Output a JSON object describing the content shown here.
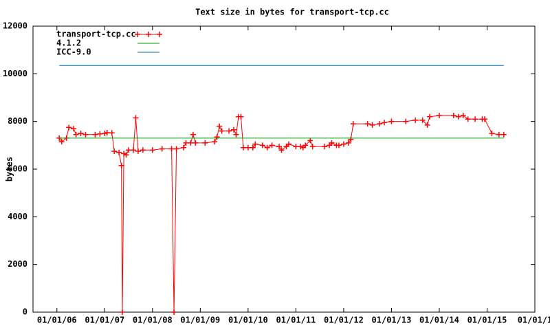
{
  "chart_data": {
    "type": "line",
    "title": "Text size in bytes for transport-tcp.cc",
    "ylabel": "bytes",
    "xlim": [
      2005.5,
      2016
    ],
    "ylim": [
      0,
      12000
    ],
    "xticks": [
      {
        "value": 2006,
        "label": "01/01/06"
      },
      {
        "value": 2007,
        "label": "01/01/07"
      },
      {
        "value": 2008,
        "label": "01/01/08"
      },
      {
        "value": 2009,
        "label": "01/01/09"
      },
      {
        "value": 2010,
        "label": "01/01/10"
      },
      {
        "value": 2011,
        "label": "01/01/11"
      },
      {
        "value": 2012,
        "label": "01/01/12"
      },
      {
        "value": 2013,
        "label": "01/01/13"
      },
      {
        "value": 2014,
        "label": "01/01/14"
      },
      {
        "value": 2015,
        "label": "01/01/15"
      },
      {
        "value": 2016,
        "label": "01/01/1"
      }
    ],
    "yticks": [
      0,
      2000,
      4000,
      6000,
      8000,
      10000,
      12000
    ],
    "legend": "top-left",
    "series": [
      {
        "name": "transport-tcp.cc",
        "color": "#ff0000",
        "markers": true,
        "x": [
          2006.05,
          2006.1,
          2006.2,
          2006.25,
          2006.35,
          2006.4,
          2006.5,
          2006.6,
          2006.8,
          2006.9,
          2007.0,
          2007.05,
          2007.15,
          2007.2,
          2007.3,
          2007.35,
          2007.37,
          2007.4,
          2007.45,
          2007.5,
          2007.6,
          2007.65,
          2007.7,
          2007.8,
          2008.0,
          2008.2,
          2008.4,
          2008.45,
          2008.5,
          2008.65,
          2008.7,
          2008.8,
          2008.85,
          2008.9,
          2009.1,
          2009.3,
          2009.35,
          2009.4,
          2009.45,
          2009.6,
          2009.7,
          2009.75,
          2009.8,
          2009.85,
          2009.9,
          2010.0,
          2010.1,
          2010.15,
          2010.3,
          2010.4,
          2010.5,
          2010.65,
          2010.7,
          2010.8,
          2010.85,
          2011.0,
          2011.1,
          2011.15,
          2011.2,
          2011.3,
          2011.35,
          2011.6,
          2011.7,
          2011.75,
          2011.85,
          2011.9,
          2012.0,
          2012.1,
          2012.15,
          2012.2,
          2012.5,
          2012.6,
          2012.75,
          2012.85,
          2013.0,
          2013.3,
          2013.5,
          2013.65,
          2013.75,
          2013.8,
          2014.0,
          2014.3,
          2014.4,
          2014.5,
          2014.6,
          2014.75,
          2014.9,
          2014.95,
          2015.1,
          2015.25,
          2015.35
        ],
        "values": [
          7300,
          7150,
          7300,
          7750,
          7700,
          7450,
          7500,
          7450,
          7450,
          7480,
          7500,
          7530,
          7520,
          6750,
          6700,
          6150,
          0,
          6650,
          6600,
          6800,
          6800,
          8150,
          6750,
          6800,
          6800,
          6850,
          6850,
          0,
          6850,
          6900,
          7100,
          7100,
          7450,
          7100,
          7100,
          7150,
          7350,
          7800,
          7600,
          7600,
          7650,
          7450,
          8200,
          8200,
          6900,
          6900,
          6900,
          7050,
          7000,
          6900,
          7000,
          6950,
          6800,
          6950,
          7050,
          6950,
          6950,
          6900,
          7000,
          7200,
          6950,
          6950,
          7000,
          7100,
          7000,
          7000,
          7050,
          7100,
          7250,
          7900,
          7900,
          7850,
          7900,
          7950,
          8000,
          8000,
          8050,
          8050,
          7850,
          8200,
          8250,
          8250,
          8200,
          8250,
          8100,
          8100,
          8100,
          8100,
          7500,
          7450,
          7450
        ]
      },
      {
        "name": "4.1.2",
        "color": "#00a000",
        "markers": false,
        "x": [
          2006.05,
          2015.35
        ],
        "values": [
          7300,
          7300
        ]
      },
      {
        "name": "ICC-9.0",
        "color": "#0070c0",
        "markers": false,
        "x": [
          2006.05,
          2015.35
        ],
        "values": [
          10350,
          10350
        ]
      }
    ]
  }
}
